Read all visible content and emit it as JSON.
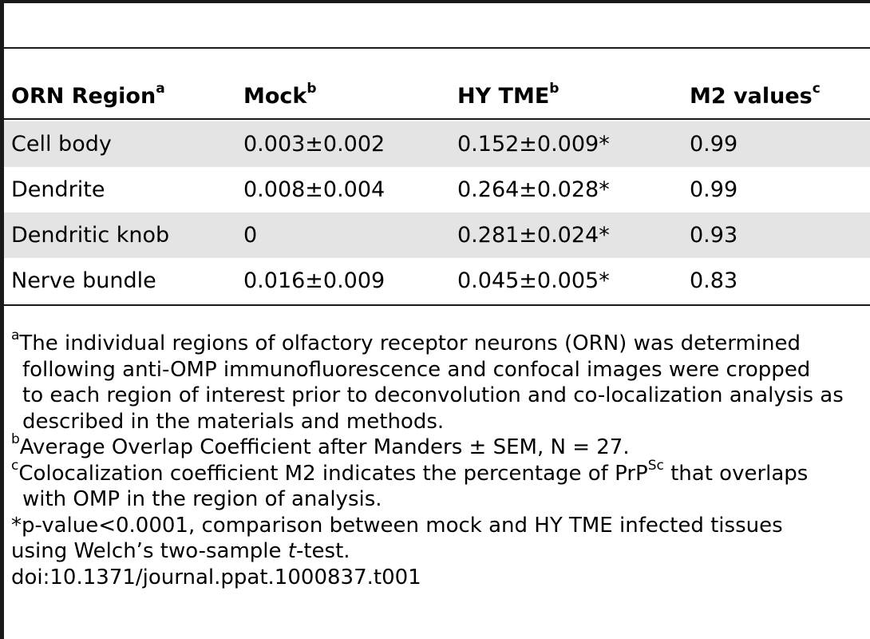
{
  "table": {
    "columns": [
      {
        "label": "ORN Region",
        "sup": "a"
      },
      {
        "label": "Mock",
        "sup": "b"
      },
      {
        "label": "HY TME",
        "sup": "b"
      },
      {
        "label": "M2 values",
        "sup": "c"
      }
    ],
    "rows": [
      {
        "region": "Cell body",
        "mock": "0.003±0.002",
        "hy_tme": "0.152±0.009*",
        "m2": "0.99"
      },
      {
        "region": "Dendrite",
        "mock": "0.008±0.004",
        "hy_tme": "0.264±0.028*",
        "m2": "0.99"
      },
      {
        "region": "Dendritic knob",
        "mock": "0",
        "hy_tme": "0.281±0.024*",
        "m2": "0.93"
      },
      {
        "region": "Nerve bundle",
        "mock": "0.016±0.009",
        "hy_tme": "0.045±0.005*",
        "m2": "0.83"
      }
    ]
  },
  "footnotes": {
    "a": {
      "mark": "a",
      "line1": "The individual regions of olfactory receptor neurons (ORN) was determined",
      "line2": "following anti-OMP immunofluorescence and confocal images were cropped",
      "line3": "to each region of interest prior to deconvolution and co-localization analysis as",
      "line4": "described in the materials and methods."
    },
    "b": {
      "mark": "b",
      "text": "Average Overlap Coefficient after Manders ± SEM, N = 27."
    },
    "c": {
      "mark": "c",
      "line1_pre": "Colocalization coefficient M2 indicates the percentage of PrP",
      "line1_sup": "Sc",
      "line1_post": " that overlaps",
      "line2": "with OMP in the region of analysis."
    },
    "star": {
      "line1": "*p-value<0.0001, comparison between mock and HY TME infected tissues",
      "line2_pre": "using Welch’s two-sample ",
      "line2_italic": "t",
      "line2_post": "-test."
    },
    "doi": "doi:10.1371/journal.ppat.1000837.t001"
  }
}
